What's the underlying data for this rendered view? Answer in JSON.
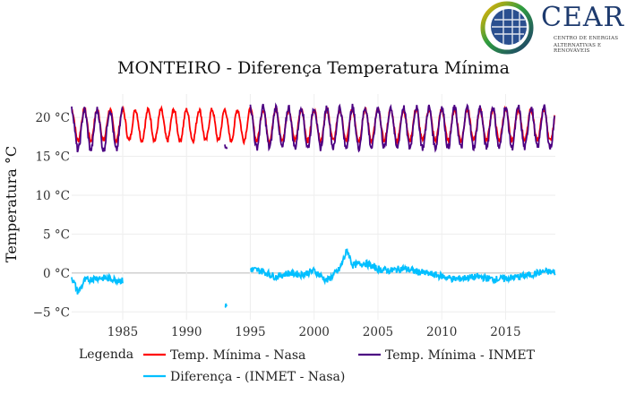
{
  "logo": {
    "name": "CEAR",
    "subtitle_line1": "CENTRO DE ENERGIAS",
    "subtitle_line2": "ALTERNATIVAS E RENOVÁVEIS"
  },
  "chart_data": {
    "type": "line",
    "title": "MONTEIRO - Diferença Temperatura Mínima",
    "ylabel": "Temperatura °C",
    "xlabel": "",
    "xlim": [
      1981.0,
      2018.9
    ],
    "ylim": [
      -6,
      23
    ],
    "grid": true,
    "x_ticks": [
      {
        "value": 1985,
        "label": "1985"
      },
      {
        "value": 1990,
        "label": "1990"
      },
      {
        "value": 1995,
        "label": "1995"
      },
      {
        "value": 2000,
        "label": "2000"
      },
      {
        "value": 2005,
        "label": "2005"
      },
      {
        "value": 2010,
        "label": "2010"
      },
      {
        "value": 2015,
        "label": "2015"
      }
    ],
    "y_ticks": [
      {
        "value": 20,
        "label": "20 °C"
      },
      {
        "value": 15,
        "label": "15 °C"
      },
      {
        "value": 10,
        "label": "10 °C"
      },
      {
        "value": 5,
        "label": "5 °C"
      },
      {
        "value": 0,
        "label": "0 °C"
      },
      {
        "value": -5,
        "label": "−5 °C"
      }
    ],
    "legend": {
      "title": "Legenda",
      "position": "bottom"
    },
    "series": [
      {
        "name": "Temp. Mínima - Nasa",
        "color": "#ff0000",
        "segments": [
          {
            "x_start": 1981.0,
            "x_end": 2018.9,
            "mean": 19.0,
            "amplitude": 2.0,
            "phase": 0.0
          }
        ]
      },
      {
        "name": "Temp. Mínima - INMET",
        "color": "#4b0082",
        "segments": [
          {
            "x_start": 1981.0,
            "x_end": 1985.0,
            "mean": 18.4,
            "amplitude": 2.6,
            "phase": 0.0
          },
          {
            "x_start": 1993.0,
            "x_end": 1993.2,
            "mean": 16.2,
            "amplitude": 0.3,
            "phase": 0.0
          },
          {
            "x_start": 1995.0,
            "x_end": 2018.9,
            "mean": 18.7,
            "amplitude": 2.6,
            "phase": 0.0
          }
        ]
      },
      {
        "name": "Diferença - (INMET - Nasa)",
        "color": "#00bfff",
        "points_sample": [
          [
            1981.0,
            -0.5
          ],
          [
            1981.5,
            -2.5
          ],
          [
            1982.0,
            -1.0
          ],
          [
            1983.0,
            -0.6
          ],
          [
            1984.0,
            -0.7
          ],
          [
            1985.0,
            -1.0
          ],
          [
            1993.0,
            -4.2
          ],
          [
            1995.0,
            0.5
          ],
          [
            1996.0,
            0.2
          ],
          [
            1997.0,
            -0.5
          ],
          [
            1998.0,
            0.0
          ],
          [
            1999.0,
            -0.2
          ],
          [
            2000.0,
            0.3
          ],
          [
            2001.0,
            -1.0
          ],
          [
            2002.0,
            0.5
          ],
          [
            2002.6,
            3.0
          ],
          [
            2003.0,
            1.0
          ],
          [
            2004.0,
            1.3
          ],
          [
            2005.0,
            0.5
          ],
          [
            2006.0,
            0.3
          ],
          [
            2007.0,
            0.6
          ],
          [
            2008.0,
            0.2
          ],
          [
            2009.0,
            -0.1
          ],
          [
            2010.0,
            -0.4
          ],
          [
            2011.0,
            -0.8
          ],
          [
            2012.0,
            -0.6
          ],
          [
            2013.0,
            -0.5
          ],
          [
            2014.0,
            -0.8
          ],
          [
            2015.0,
            -0.7
          ],
          [
            2016.0,
            -0.5
          ],
          [
            2017.0,
            -0.2
          ],
          [
            2018.0,
            0.2
          ],
          [
            2018.9,
            0.1
          ]
        ],
        "segments": [
          {
            "x_start": 1981.0,
            "x_end": 1985.0
          },
          {
            "x_start": 1993.0,
            "x_end": 1993.2
          },
          {
            "x_start": 1995.0,
            "x_end": 2018.9
          }
        ]
      }
    ]
  }
}
